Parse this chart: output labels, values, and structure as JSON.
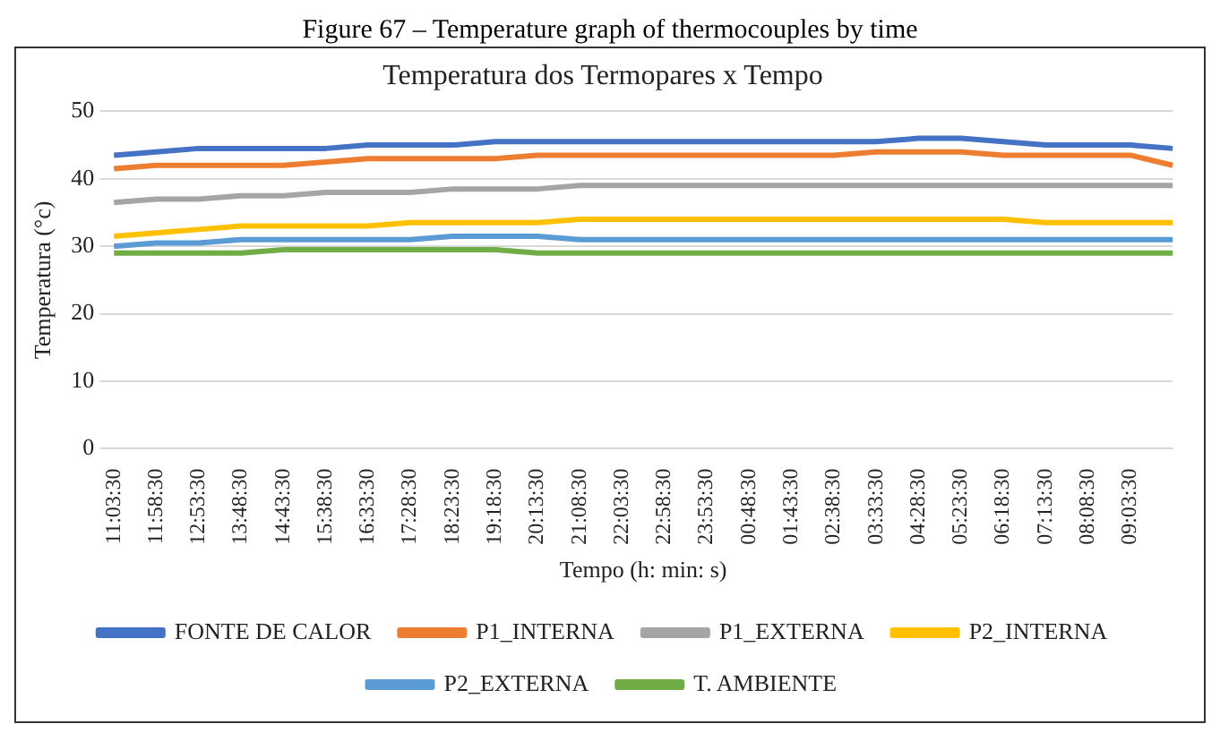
{
  "chart_data": {
    "type": "line",
    "title": "Temperatura dos Termopares x Tempo",
    "xlabel": "Tempo (h: min: s)",
    "ylabel": "Temperatura (°c)",
    "annotations": [
      "Figure 67 – Temperature graph of thermocouples by time"
    ],
    "categories": [
      "11:03:30",
      "11:58:30",
      "12:53:30",
      "13:48:30",
      "14:43:30",
      "15:38:30",
      "16:33:30",
      "17:28:30",
      "18:23:30",
      "19:18:30",
      "20:13:30",
      "21:08:30",
      "22:03:30",
      "22:58:30",
      "23:53:30",
      "00:48:30",
      "01:43:30",
      "02:38:30",
      "03:33:30",
      "04:28:30",
      "05:23:30",
      "06:18:30",
      "07:13:30",
      "08:08:30",
      "09:03:30",
      null
    ],
    "series": [
      {
        "name": "FONTE DE CALOR",
        "color": "#4472c4",
        "values": [
          43.5,
          44,
          44.5,
          44.5,
          44.5,
          44.5,
          45,
          45,
          45,
          45.5,
          45.5,
          45.5,
          45.5,
          45.5,
          45.5,
          45.5,
          45.5,
          45.5,
          45.5,
          46,
          46,
          45.5,
          45,
          45,
          45,
          44.5
        ]
      },
      {
        "name": "P1_INTERNA",
        "color": "#ed7d31",
        "values": [
          41.5,
          42,
          42,
          42,
          42,
          42.5,
          43,
          43,
          43,
          43,
          43.5,
          43.5,
          43.5,
          43.5,
          43.5,
          43.5,
          43.5,
          43.5,
          44,
          44,
          44,
          43.5,
          43.5,
          43.5,
          43.5,
          42
        ]
      },
      {
        "name": "P1_EXTERNA",
        "color": "#a5a5a5",
        "values": [
          36.5,
          37,
          37,
          37.5,
          37.5,
          38,
          38,
          38,
          38.5,
          38.5,
          38.5,
          39,
          39,
          39,
          39,
          39,
          39,
          39,
          39,
          39,
          39,
          39,
          39,
          39,
          39,
          39
        ]
      },
      {
        "name": "P2_INTERNA",
        "color": "#ffc000",
        "values": [
          31.5,
          32,
          32.5,
          33,
          33,
          33,
          33,
          33.5,
          33.5,
          33.5,
          33.5,
          34,
          34,
          34,
          34,
          34,
          34,
          34,
          34,
          34,
          34,
          34,
          33.5,
          33.5,
          33.5,
          33.5
        ]
      },
      {
        "name": "P2_EXTERNA",
        "color": "#5b9bd5",
        "values": [
          30,
          30.5,
          30.5,
          31,
          31,
          31,
          31,
          31,
          31.5,
          31.5,
          31.5,
          31,
          31,
          31,
          31,
          31,
          31,
          31,
          31,
          31,
          31,
          31,
          31,
          31,
          31,
          31
        ]
      },
      {
        "name": "T. AMBIENTE",
        "color": "#70ad47",
        "values": [
          29,
          29,
          29,
          29,
          29.5,
          29.5,
          29.5,
          29.5,
          29.5,
          29.5,
          29,
          29,
          29,
          29,
          29,
          29,
          29,
          29,
          29,
          29,
          29,
          29,
          29,
          29,
          29,
          29
        ]
      }
    ],
    "ylim": [
      0,
      50
    ],
    "yticks": [
      0,
      10,
      20,
      30,
      40,
      50
    ],
    "grid": "y",
    "legend": "bottom",
    "marker": "none",
    "line_style": "solid"
  }
}
